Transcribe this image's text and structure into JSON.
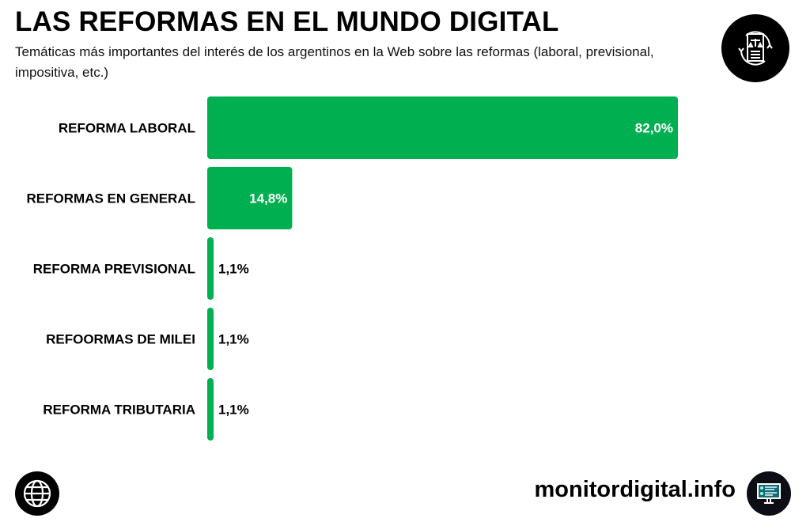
{
  "header": {
    "title": "LAS REFORMAS EN EL MUNDO DIGITAL",
    "subtitle": "Temáticas más importantes del interés de los argentinos en la Web sobre las reformas (laboral, previsional, impositiva, etc.)"
  },
  "icons": {
    "top_right": "legal-document-cycle-icon",
    "bottom_left": "globe-icon",
    "bottom_right": "monitor-dashboard-icon"
  },
  "footer": {
    "brand": "monitordigital.info"
  },
  "colors": {
    "bar": "#00b050",
    "label_inside": "#ffffff",
    "label_outside": "#000000"
  },
  "chart_data": {
    "type": "bar",
    "orientation": "horizontal",
    "categories": [
      "REFORMA LABORAL",
      "REFORMAS EN GENERAL",
      "REFORMA PREVISIONAL",
      "REFOORMAS DE MILEI",
      "REFORMA TRIBUTARIA"
    ],
    "values": [
      82.0,
      14.8,
      1.1,
      1.1,
      1.1
    ],
    "data_labels": [
      "82,0%",
      "14,8%",
      "1,1%",
      "1,1%",
      "1,1%"
    ],
    "unit": "%",
    "xlim": [
      0,
      100
    ],
    "grid": false
  }
}
